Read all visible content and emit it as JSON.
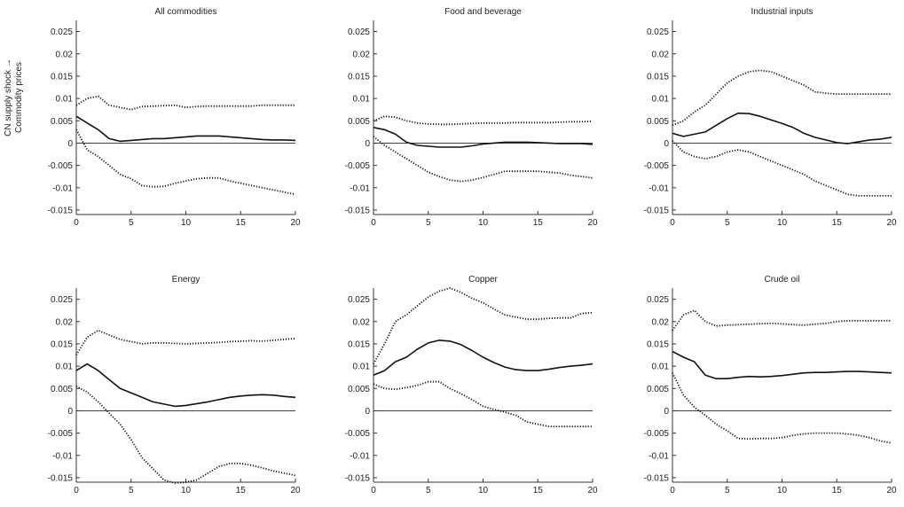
{
  "figure": {
    "ylabel_lines": [
      "CN supply shock →",
      "Commodity prices"
    ]
  },
  "chart_data": [
    {
      "type": "line",
      "title": "All commodities",
      "xlim": [
        0,
        20
      ],
      "ylim": [
        -0.016,
        0.0275
      ],
      "x_ticks": [
        0,
        5,
        10,
        15,
        20
      ],
      "y_ticks": [
        -0.015,
        -0.01,
        -0.005,
        0,
        0.005,
        0.01,
        0.015,
        0.02,
        0.025
      ],
      "y_tick_labels": [
        "-0.015",
        "-0.01",
        "-0.005",
        "0",
        "0.005",
        "0.01",
        "0.015",
        "0.02",
        "0.025"
      ],
      "x": [
        0,
        1,
        2,
        3,
        4,
        5,
        6,
        7,
        8,
        9,
        10,
        11,
        12,
        13,
        14,
        15,
        16,
        17,
        18,
        19,
        20
      ],
      "series": [
        {
          "style": "solid",
          "values": [
            0.006,
            0.0045,
            0.003,
            0.001,
            0.0004,
            0.0006,
            0.0008,
            0.001,
            0.001,
            0.0012,
            0.0014,
            0.0016,
            0.0016,
            0.0016,
            0.0014,
            0.0012,
            0.001,
            0.0008,
            0.0007,
            0.0007,
            0.0006
          ]
        },
        {
          "style": "dotted",
          "values": [
            0.0085,
            0.01,
            0.0105,
            0.0085,
            0.008,
            0.0075,
            0.0082,
            0.0083,
            0.0084,
            0.0085,
            0.008,
            0.0082,
            0.0083,
            0.0083,
            0.0083,
            0.0083,
            0.0083,
            0.0085,
            0.0085,
            0.0085,
            0.0085
          ]
        },
        {
          "style": "dotted",
          "values": [
            0.003,
            -0.0015,
            -0.003,
            -0.005,
            -0.007,
            -0.008,
            -0.0095,
            -0.0098,
            -0.0097,
            -0.009,
            -0.0085,
            -0.008,
            -0.0078,
            -0.0078,
            -0.0085,
            -0.009,
            -0.0095,
            -0.01,
            -0.0105,
            -0.011,
            -0.0115
          ]
        }
      ]
    },
    {
      "type": "line",
      "title": "Food and beverage",
      "xlim": [
        0,
        20
      ],
      "ylim": [
        -0.016,
        0.0275
      ],
      "x_ticks": [
        0,
        5,
        10,
        15,
        20
      ],
      "y_ticks": [
        -0.015,
        -0.01,
        -0.005,
        0,
        0.005,
        0.01,
        0.015,
        0.02,
        0.025
      ],
      "y_tick_labels": [
        "-0.015",
        "-0.01",
        "-0.005",
        "0",
        "0.005",
        "0.01",
        "0.015",
        "0.02",
        "0.025"
      ],
      "x": [
        0,
        1,
        2,
        3,
        4,
        5,
        6,
        7,
        8,
        9,
        10,
        11,
        12,
        13,
        14,
        15,
        16,
        17,
        18,
        19,
        20
      ],
      "series": [
        {
          "style": "solid",
          "values": [
            0.0035,
            0.003,
            0.002,
            0.0002,
            -0.0005,
            -0.0007,
            -0.0009,
            -0.0009,
            -0.0009,
            -0.0006,
            -0.0002,
            0,
            0.0002,
            0.0002,
            0.0002,
            0.0001,
            0,
            -0.0001,
            -0.0001,
            -0.0001,
            -0.0003
          ]
        },
        {
          "style": "dotted",
          "values": [
            0.005,
            0.006,
            0.0058,
            0.005,
            0.0045,
            0.0043,
            0.0042,
            0.0042,
            0.0043,
            0.0044,
            0.0045,
            0.0045,
            0.0045,
            0.0046,
            0.0046,
            0.0046,
            0.0046,
            0.0047,
            0.0048,
            0.0048,
            0.0049
          ]
        },
        {
          "style": "dotted",
          "values": [
            0.0015,
            -0.0005,
            -0.002,
            -0.0035,
            -0.005,
            -0.0065,
            -0.0075,
            -0.0083,
            -0.0086,
            -0.0083,
            -0.0077,
            -0.007,
            -0.0063,
            -0.0063,
            -0.0063,
            -0.0063,
            -0.0065,
            -0.0067,
            -0.0072,
            -0.0075,
            -0.0078
          ]
        }
      ]
    },
    {
      "type": "line",
      "title": "Industrial inputs",
      "xlim": [
        0,
        20
      ],
      "ylim": [
        -0.016,
        0.0275
      ],
      "x_ticks": [
        0,
        5,
        10,
        15,
        20
      ],
      "y_ticks": [
        -0.015,
        -0.01,
        -0.005,
        0,
        0.005,
        0.01,
        0.015,
        0.02,
        0.025
      ],
      "y_tick_labels": [
        "-0.015",
        "-0.01",
        "-0.005",
        "0",
        "0.005",
        "0.01",
        "0.015",
        "0.02",
        "0.025"
      ],
      "x": [
        0,
        1,
        2,
        3,
        4,
        5,
        6,
        7,
        8,
        9,
        10,
        11,
        12,
        13,
        14,
        15,
        16,
        17,
        18,
        19,
        20
      ],
      "series": [
        {
          "style": "solid",
          "values": [
            0.0022,
            0.0015,
            0.002,
            0.0025,
            0.004,
            0.0055,
            0.0067,
            0.0066,
            0.006,
            0.0052,
            0.0044,
            0.0035,
            0.0022,
            0.0013,
            0.0007,
            0.0001,
            -0.0001,
            0.0003,
            0.0007,
            0.0009,
            0.0013
          ]
        },
        {
          "style": "dotted",
          "values": [
            0.004,
            0.005,
            0.007,
            0.0085,
            0.011,
            0.0135,
            0.015,
            0.016,
            0.0163,
            0.016,
            0.015,
            0.014,
            0.013,
            0.0115,
            0.0112,
            0.011,
            0.011,
            0.011,
            0.011,
            0.011,
            0.011
          ]
        },
        {
          "style": "dotted",
          "values": [
            0.0005,
            -0.002,
            -0.003,
            -0.0035,
            -0.003,
            -0.002,
            -0.0015,
            -0.002,
            -0.003,
            -0.004,
            -0.005,
            -0.006,
            -0.007,
            -0.0085,
            -0.0095,
            -0.0105,
            -0.0115,
            -0.0118,
            -0.0118,
            -0.0118,
            -0.0118
          ]
        }
      ]
    },
    {
      "type": "line",
      "title": "Energy",
      "xlim": [
        0,
        20
      ],
      "ylim": [
        -0.016,
        0.0275
      ],
      "x_ticks": [
        0,
        5,
        10,
        15,
        20
      ],
      "y_ticks": [
        -0.015,
        -0.01,
        -0.005,
        0,
        0.005,
        0.01,
        0.015,
        0.02,
        0.025
      ],
      "y_tick_labels": [
        "-0.015",
        "-0.01",
        "-0.005",
        "0",
        "0.005",
        "0.01",
        "0.015",
        "0.02",
        "0.025"
      ],
      "x": [
        0,
        1,
        2,
        3,
        4,
        5,
        6,
        7,
        8,
        9,
        10,
        11,
        12,
        13,
        14,
        15,
        16,
        17,
        18,
        19,
        20
      ],
      "series": [
        {
          "style": "solid",
          "values": [
            0.009,
            0.0105,
            0.009,
            0.007,
            0.005,
            0.004,
            0.003,
            0.002,
            0.0015,
            0.001,
            0.0012,
            0.0016,
            0.002,
            0.0025,
            0.003,
            0.0033,
            0.0035,
            0.0036,
            0.0035,
            0.0032,
            0.003
          ]
        },
        {
          "style": "dotted",
          "values": [
            0.0125,
            0.0165,
            0.018,
            0.017,
            0.016,
            0.0155,
            0.015,
            0.0152,
            0.0152,
            0.0151,
            0.015,
            0.0151,
            0.0152,
            0.0153,
            0.0155,
            0.0156,
            0.0157,
            0.0156,
            0.0158,
            0.016,
            0.0162
          ]
        },
        {
          "style": "dotted",
          "values": [
            0.0055,
            0.0042,
            0.002,
            -0.0005,
            -0.003,
            -0.0065,
            -0.0105,
            -0.013,
            -0.0155,
            -0.0162,
            -0.016,
            -0.0155,
            -0.014,
            -0.0125,
            -0.0118,
            -0.0118,
            -0.0122,
            -0.0128,
            -0.0135,
            -0.014,
            -0.0145
          ]
        }
      ]
    },
    {
      "type": "line",
      "title": "Copper",
      "xlim": [
        0,
        20
      ],
      "ylim": [
        -0.016,
        0.0275
      ],
      "x_ticks": [
        0,
        5,
        10,
        15,
        20
      ],
      "y_ticks": [
        -0.015,
        -0.01,
        -0.005,
        0,
        0.005,
        0.01,
        0.015,
        0.02,
        0.025
      ],
      "y_tick_labels": [
        "-0.015",
        "-0.01",
        "-0.005",
        "0",
        "0.005",
        "0.01",
        "0.015",
        "0.02",
        "0.025"
      ],
      "x": [
        0,
        1,
        2,
        3,
        4,
        5,
        6,
        7,
        8,
        9,
        10,
        11,
        12,
        13,
        14,
        15,
        16,
        17,
        18,
        19,
        20
      ],
      "series": [
        {
          "style": "solid",
          "values": [
            0.008,
            0.009,
            0.011,
            0.012,
            0.0138,
            0.0152,
            0.0158,
            0.0156,
            0.0148,
            0.0135,
            0.012,
            0.0108,
            0.0098,
            0.0092,
            0.009,
            0.009,
            0.0093,
            0.0097,
            0.01,
            0.0102,
            0.0105
          ]
        },
        {
          "style": "dotted",
          "values": [
            0.0105,
            0.015,
            0.02,
            0.0215,
            0.0235,
            0.0255,
            0.0268,
            0.0275,
            0.0265,
            0.0252,
            0.0242,
            0.0228,
            0.0215,
            0.021,
            0.0205,
            0.0205,
            0.0207,
            0.0208,
            0.0208,
            0.0218,
            0.022
          ]
        },
        {
          "style": "dotted",
          "values": [
            0.006,
            0.005,
            0.0048,
            0.0052,
            0.0057,
            0.0065,
            0.0065,
            0.005,
            0.0038,
            0.0025,
            0.001,
            0.0003,
            -0.0003,
            -0.001,
            -0.0025,
            -0.003,
            -0.0035,
            -0.0035,
            -0.0035,
            -0.0035,
            -0.0035
          ]
        }
      ]
    },
    {
      "type": "line",
      "title": "Crude oil",
      "xlim": [
        0,
        20
      ],
      "ylim": [
        -0.016,
        0.0275
      ],
      "x_ticks": [
        0,
        5,
        10,
        15,
        20
      ],
      "y_ticks": [
        -0.015,
        -0.01,
        -0.005,
        0,
        0.005,
        0.01,
        0.015,
        0.02,
        0.025
      ],
      "y_tick_labels": [
        "-0.015",
        "-0.01",
        "-0.005",
        "0",
        "0.005",
        "0.01",
        "0.015",
        "0.02",
        "0.025"
      ],
      "x": [
        0,
        1,
        2,
        3,
        4,
        5,
        6,
        7,
        8,
        9,
        10,
        11,
        12,
        13,
        14,
        15,
        16,
        17,
        18,
        19,
        20
      ],
      "series": [
        {
          "style": "solid",
          "values": [
            0.0133,
            0.012,
            0.011,
            0.008,
            0.0072,
            0.0072,
            0.0075,
            0.0077,
            0.0076,
            0.0077,
            0.0079,
            0.0082,
            0.0085,
            0.0086,
            0.0086,
            0.0087,
            0.0088,
            0.0088,
            0.0087,
            0.0086,
            0.0085
          ]
        },
        {
          "style": "dotted",
          "values": [
            0.018,
            0.0215,
            0.0225,
            0.02,
            0.019,
            0.0192,
            0.0193,
            0.0194,
            0.0195,
            0.0196,
            0.0195,
            0.0193,
            0.0192,
            0.0194,
            0.0196,
            0.02,
            0.0202,
            0.0202,
            0.0202,
            0.0202,
            0.0202
          ]
        },
        {
          "style": "dotted",
          "values": [
            0.0085,
            0.0035,
            0.0008,
            -0.001,
            -0.003,
            -0.0045,
            -0.0062,
            -0.0063,
            -0.0062,
            -0.0062,
            -0.006,
            -0.0055,
            -0.0052,
            -0.005,
            -0.005,
            -0.005,
            -0.0052,
            -0.0055,
            -0.006,
            -0.0068,
            -0.0072
          ]
        }
      ]
    }
  ]
}
